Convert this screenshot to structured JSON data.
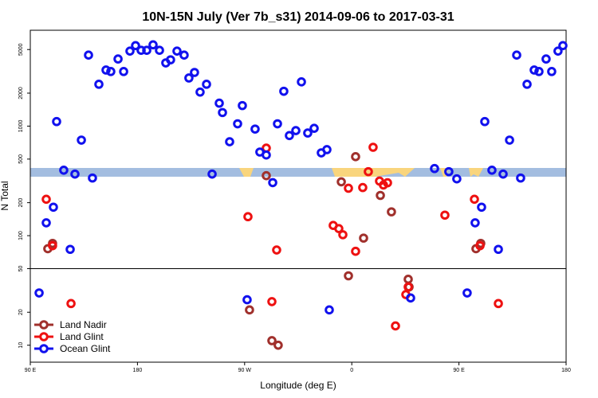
{
  "chart_data": {
    "type": "scatter",
    "title": "10N-15N July (Ver 7b_s31)   2014-09-06 to 2017-03-31",
    "xlabel": "Longitude (deg E)",
    "ylabel": "N Total",
    "xlim": [
      90,
      540
    ],
    "xticks": [
      {
        "value": 90,
        "label": "90 E"
      },
      180,
      {
        "value": 270,
        "label": "90 W"
      },
      {
        "value": 360,
        "label": "0"
      },
      {
        "value": 450,
        "label": "90 E"
      },
      {
        "value": 540,
        "label": "180"
      }
    ],
    "ylim": [
      7,
      7500
    ],
    "log_y": true,
    "yticks": [
      10,
      20,
      50,
      100,
      200,
      500,
      1000,
      2000,
      5000
    ],
    "reference_line": 50,
    "legend": "lower left",
    "series": [
      {
        "name": "Land Nadir",
        "color": "#a0302c",
        "x": [
          104.7,
          108.7,
          274.1,
          288.2,
          292.9,
          298.2,
          351.2,
          357.2,
          363.2,
          369.9,
          384,
          393.3,
          407.4,
          408.1,
          464.3,
          468.3
        ],
        "values": [
          76,
          85,
          21,
          353,
          11,
          10,
          310,
          43,
          526,
          95,
          233,
          165,
          40,
          34,
          76,
          85
        ]
      },
      {
        "name": "Land Glint",
        "color": "#ee1111",
        "x": [
          103.4,
          108.7,
          124.2,
          272.8,
          288.2,
          292.9,
          296.9,
          344.4,
          349.1,
          352.5,
          357.2,
          363.2,
          369.2,
          373.9,
          377.9,
          383.3,
          386.6,
          390,
          396.7,
          405.4,
          407.4,
          438.2,
          463,
          467.7,
          483.1
        ],
        "values": [
          215,
          81,
          24,
          149,
          630,
          25,
          74,
          124,
          116,
          102,
          271,
          72,
          275,
          384,
          641,
          315,
          290,
          304,
          15,
          29,
          34,
          154,
          215,
          81,
          24
        ]
      },
      {
        "name": "Ocean Glint",
        "color": "#1111ee",
        "x": [
          97.4,
          103.4,
          109.4,
          112.1,
          118.1,
          123.5,
          127.5,
          132.9,
          138.9,
          142.2,
          147.6,
          153.6,
          157.6,
          163.7,
          168.4,
          173.7,
          178.4,
          183.1,
          187.8,
          193.1,
          198.5,
          203.8,
          207.8,
          213.2,
          219.2,
          223.2,
          227.9,
          232.6,
          238,
          242.7,
          248.7,
          251.4,
          257.4,
          264.1,
          268.1,
          272.1,
          278.8,
          282.8,
          288.2,
          293.6,
          297.6,
          302.9,
          307.6,
          313,
          317.7,
          323,
          328.4,
          334.4,
          339.1,
          341.1,
          409.4,
          429.5,
          441.5,
          448.2,
          456.9,
          463.6,
          469,
          471.7,
          477.7,
          483.1,
          487.1,
          492.5,
          498.5,
          501.8,
          507.2,
          513.2,
          517.2,
          523.2,
          527.9,
          533.2,
          537.3
        ],
        "values": [
          30,
          131,
          182,
          1100,
          396,
          75,
          365,
          745,
          4450,
          336,
          2410,
          3250,
          3150,
          4100,
          3150,
          4840,
          5430,
          4920,
          4920,
          5520,
          4920,
          3775,
          4030,
          4840,
          4450,
          2750,
          3090,
          2045,
          2410,
          365,
          1620,
          1330,
          720,
          1050,
          1540,
          26,
          940,
          580,
          545,
          305,
          1050,
          2080,
          820,
          910,
          2535,
          865,
          955,
          570,
          610,
          21,
          27,
          410,
          384,
          330,
          30,
          131,
          182,
          1100,
          396,
          75,
          365,
          745,
          4450,
          336,
          2410,
          3250,
          3150,
          4100,
          3150,
          4840,
          5430
        ]
      }
    ]
  }
}
